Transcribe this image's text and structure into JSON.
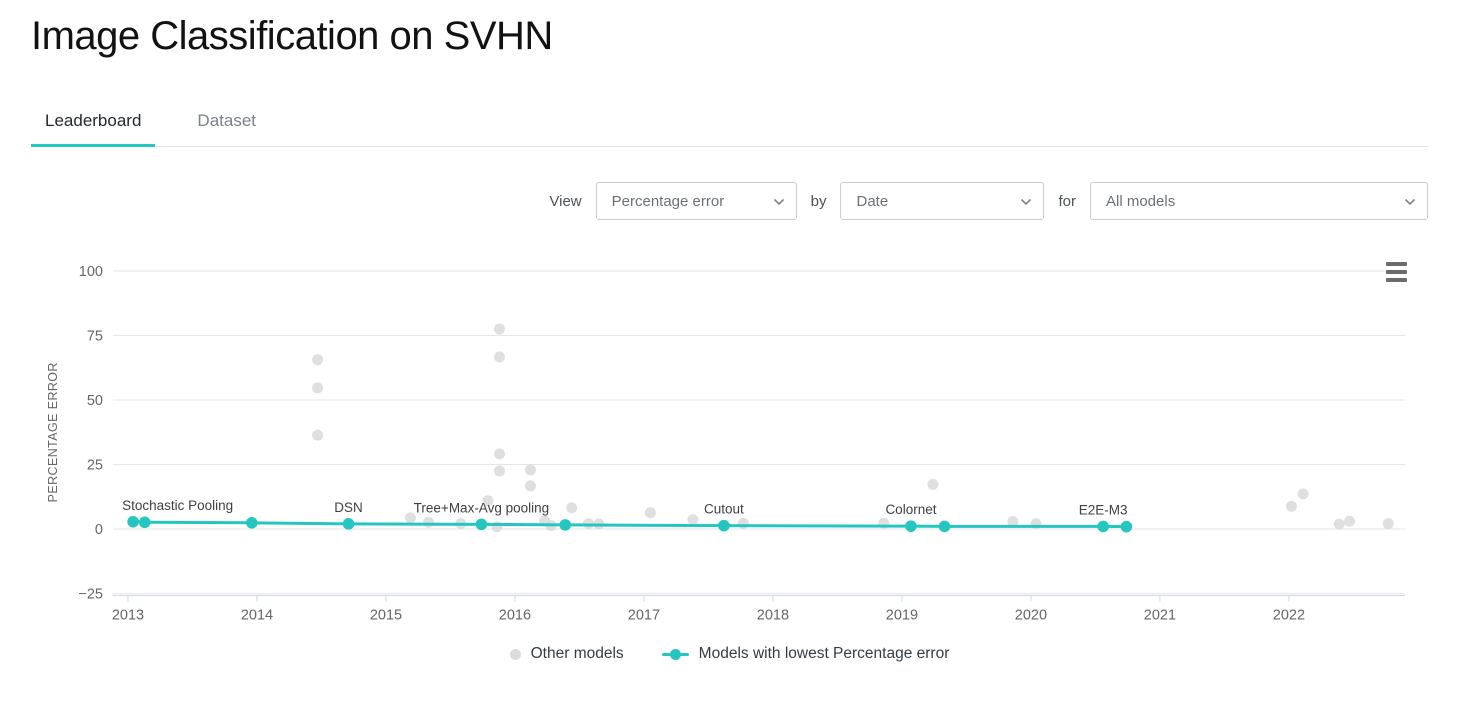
{
  "header": {
    "title": "Image Classification on SVHN"
  },
  "tabs": [
    {
      "label": "Leaderboard",
      "active": true
    },
    {
      "label": "Dataset",
      "active": false
    }
  ],
  "controls": {
    "view_label": "View",
    "by_label": "by",
    "for_label": "for",
    "metric_select": {
      "value": "Percentage error"
    },
    "group_select": {
      "value": "Date"
    },
    "models_select": {
      "value": "All models"
    }
  },
  "colors": {
    "accent": "#26c6c0",
    "other_models": "#dcdcdc",
    "grid": "#e6e6e6",
    "axis_line": "#ccd6eb",
    "tick_label": "#666666",
    "annotation": "#3d4144",
    "legend_text": "#333c44",
    "burger": "#6b6b6b"
  },
  "chart_data": {
    "type": "scatter",
    "title": "",
    "xlabel": "",
    "ylabel": "PERCENTAGE ERROR",
    "y_ticks": [
      100,
      75,
      50,
      25,
      0,
      -25
    ],
    "x_ticks": [
      2013,
      2014,
      2015,
      2016,
      2017,
      2018,
      2019,
      2020,
      2021,
      2022
    ],
    "xlim": [
      2012.884,
      2022.9
    ],
    "ylim": [
      -25,
      100
    ],
    "grid": "horizontal-only",
    "legend_position": "bottom-center",
    "series": [
      {
        "name": "Other models",
        "type": "scatter",
        "color": "#dcdcdc",
        "points": [
          [
            2014.47,
            65.6
          ],
          [
            2014.47,
            54.7
          ],
          [
            2014.47,
            36.4
          ],
          [
            2015.19,
            4.3
          ],
          [
            2015.33,
            2.6
          ],
          [
            2015.58,
            2.1
          ],
          [
            2015.79,
            10.9
          ],
          [
            2015.86,
            0.9
          ],
          [
            2015.88,
            77.5
          ],
          [
            2015.88,
            66.7
          ],
          [
            2015.88,
            29.1
          ],
          [
            2015.88,
            22.5
          ],
          [
            2016.12,
            22.9
          ],
          [
            2016.12,
            16.7
          ],
          [
            2016.23,
            3.1
          ],
          [
            2016.28,
            1.3
          ],
          [
            2016.44,
            8.2
          ],
          [
            2016.57,
            2.1
          ],
          [
            2016.65,
            2.0
          ],
          [
            2017.05,
            6.3
          ],
          [
            2017.38,
            3.6
          ],
          [
            2017.77,
            2.2
          ],
          [
            2018.86,
            2.2
          ],
          [
            2019.24,
            17.3
          ],
          [
            2019.33,
            1.1
          ],
          [
            2019.86,
            2.9
          ],
          [
            2020.04,
            2.1
          ],
          [
            2022.02,
            8.8
          ],
          [
            2022.11,
            13.6
          ],
          [
            2022.39,
            1.9
          ],
          [
            2022.47,
            3.0
          ],
          [
            2022.77,
            2.1
          ]
        ]
      },
      {
        "name": "Models with lowest Percentage error",
        "type": "line",
        "color": "#26c6c0",
        "points": [
          {
            "x": 2013.04,
            "y": 2.8,
            "label": "Stochastic Pooling",
            "align": "left"
          },
          {
            "x": 2013.13,
            "y": 2.6
          },
          {
            "x": 2013.96,
            "y": 2.4
          },
          {
            "x": 2014.71,
            "y": 2.0,
            "label": "DSN"
          },
          {
            "x": 2015.74,
            "y": 1.8,
            "label": "Tree+Max-Avg pooling"
          },
          {
            "x": 2016.39,
            "y": 1.6
          },
          {
            "x": 2017.62,
            "y": 1.3,
            "label": "Cutout"
          },
          {
            "x": 2019.07,
            "y": 1.1,
            "label": "Colornet"
          },
          {
            "x": 2019.33,
            "y": 1.0
          },
          {
            "x": 2020.56,
            "y": 1.0,
            "label": "E2E-M3"
          },
          {
            "x": 2020.74,
            "y": 0.9
          }
        ]
      }
    ]
  }
}
